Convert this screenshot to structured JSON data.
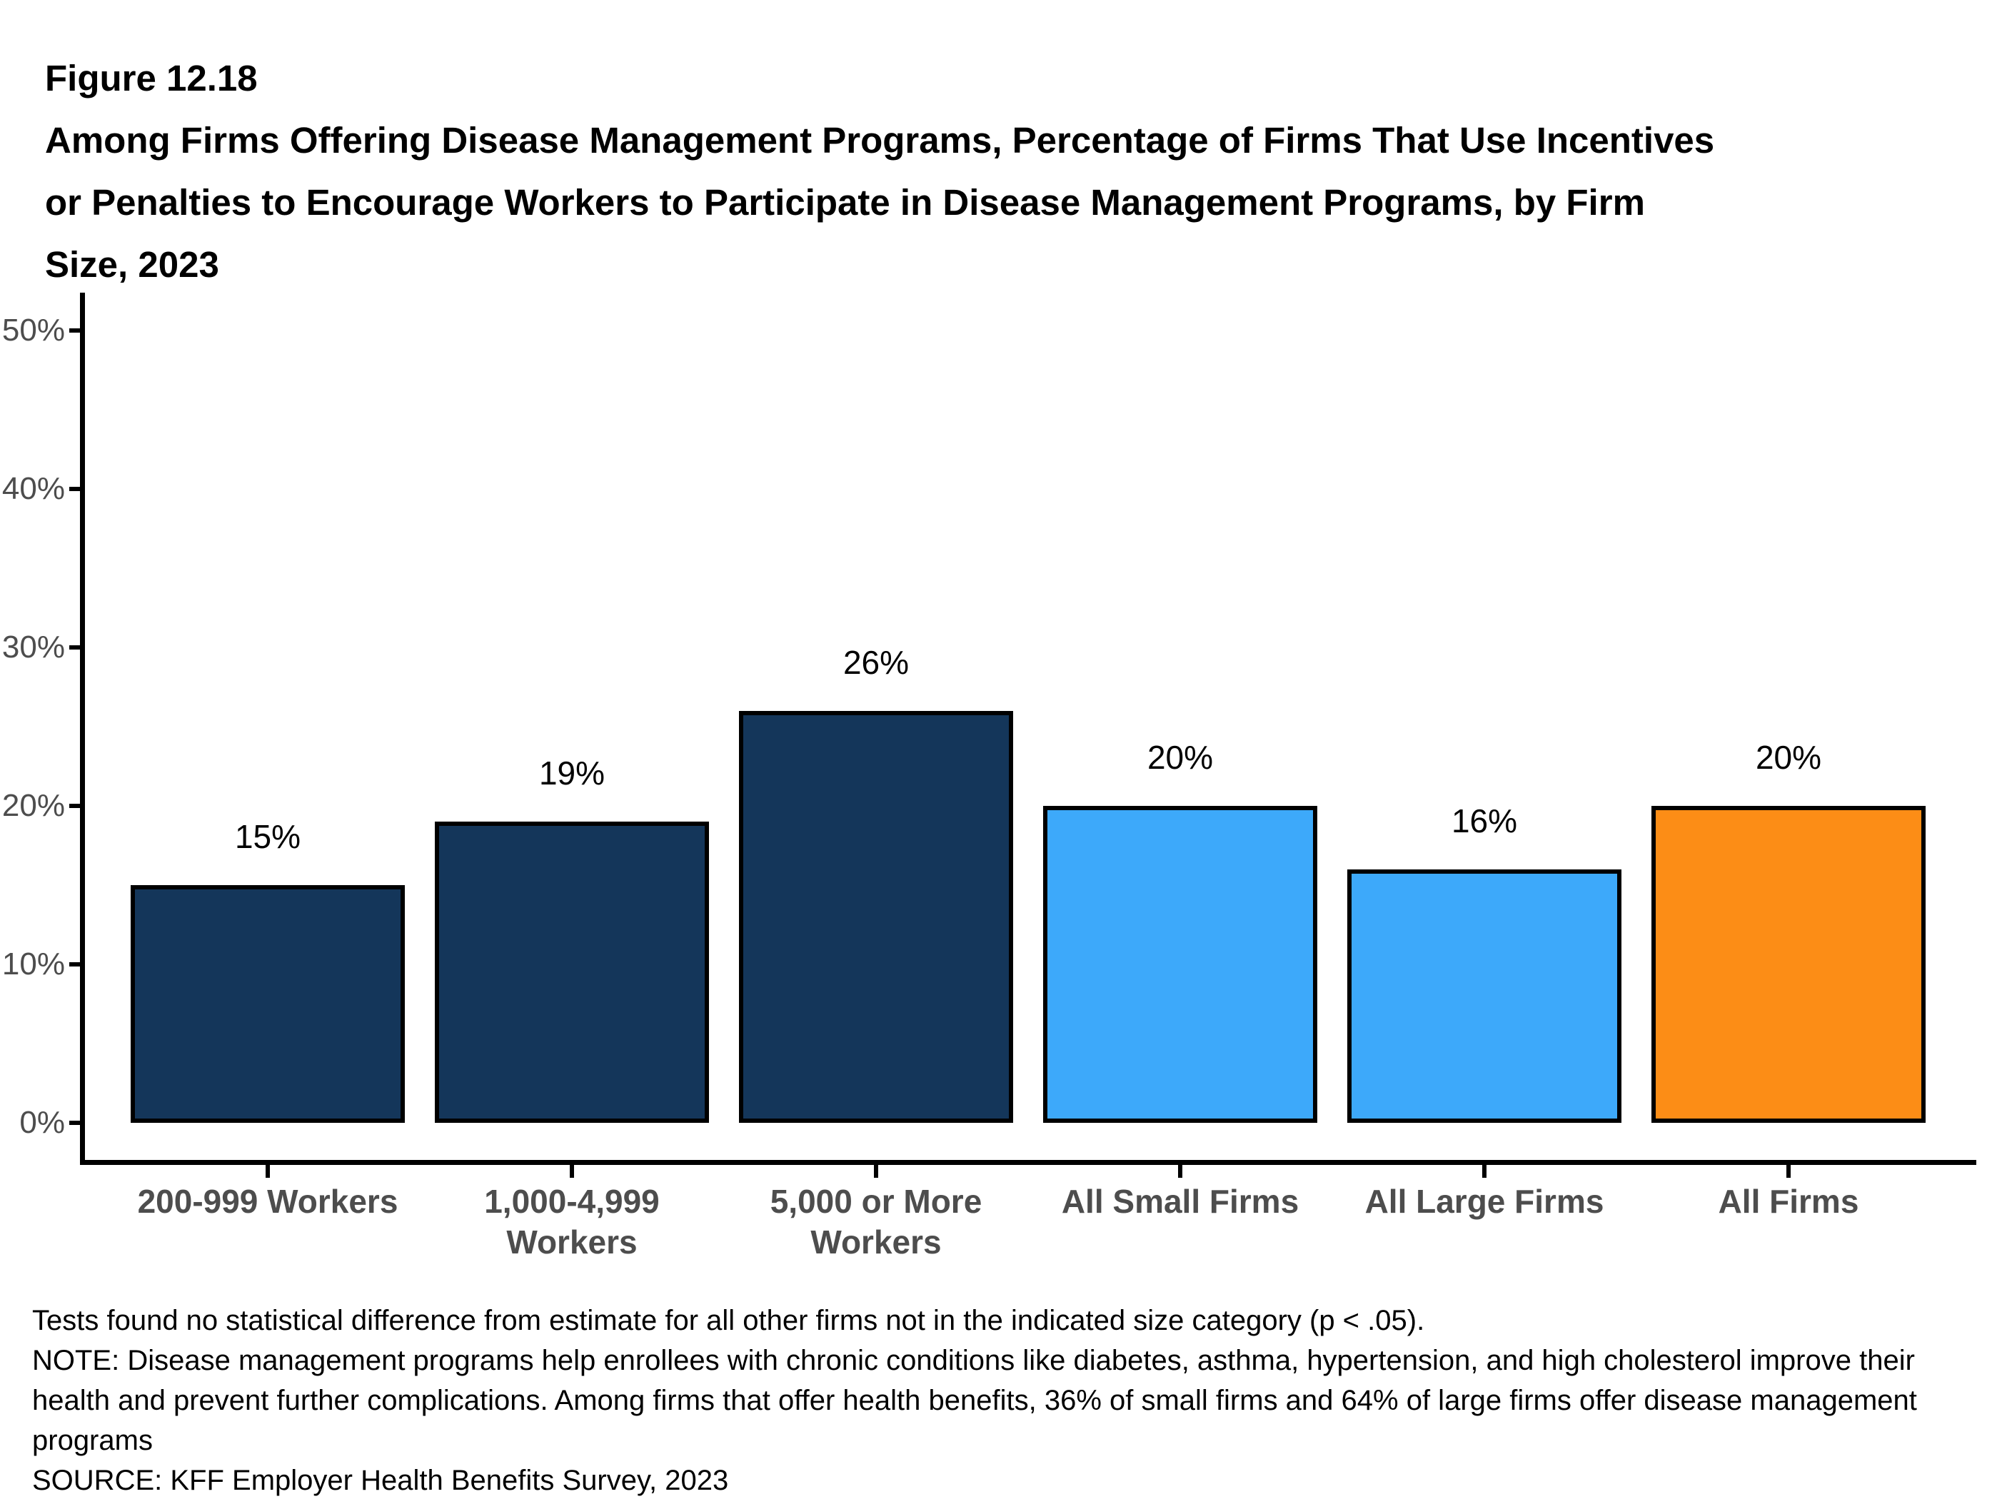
{
  "title": {
    "figure_label": "Figure 12.18",
    "lines": [
      "Among Firms Offering Disease Management Programs, Percentage of Firms That Use Incentives",
      "or Penalties to Encourage Workers to Participate in Disease Management Programs, by Firm",
      "Size, 2023"
    ]
  },
  "chart_data": {
    "type": "bar",
    "title": "Among Firms Offering Disease Management Programs, Percentage of Firms That Use Incentives or Penalties to Encourage Workers to Participate in Disease Management Programs, by Firm Size, 2023",
    "categories": [
      "200-999 Workers",
      "1,000-4,999\nWorkers",
      "5,000 or More\nWorkers",
      "All Small Firms",
      "All Large Firms",
      "All Firms"
    ],
    "values": [
      15,
      19,
      26,
      20,
      16,
      20
    ],
    "value_labels": [
      "15%",
      "19%",
      "26%",
      "20%",
      "16%",
      "20%"
    ],
    "bar_colors": [
      "#14365A",
      "#14365A",
      "#14365A",
      "#3DA9FA",
      "#3DA9FA",
      "#FC8D16"
    ],
    "bar_border_color": "#000000",
    "xlabel": "",
    "ylabel": "",
    "ylim": [
      0,
      52
    ],
    "ytick_values": [
      0,
      10,
      20,
      30,
      40,
      50
    ],
    "ytick_labels": [
      "0%",
      "10%",
      "20%",
      "30%",
      "40%",
      "50%"
    ],
    "grid": false,
    "legend": "none"
  },
  "footnotes": {
    "lines": [
      "Tests found no statistical difference from estimate for all other firms not in the indicated size category (p < .05).",
      "NOTE: Disease management programs help enrollees with chronic conditions like diabetes, asthma, hypertension, and high cholesterol improve their",
      "health and prevent further complications. Among firms that offer health benefits, 36% of small firms and 64% of large firms offer disease management",
      "programs",
      "SOURCE: KFF Employer Health Benefits Survey, 2023"
    ]
  },
  "colors": {
    "axis": "#000000",
    "tick_label": "#4D4D4D",
    "category_label": "#4D4D4D",
    "value_label": "#000000",
    "background": "#FFFFFF"
  }
}
